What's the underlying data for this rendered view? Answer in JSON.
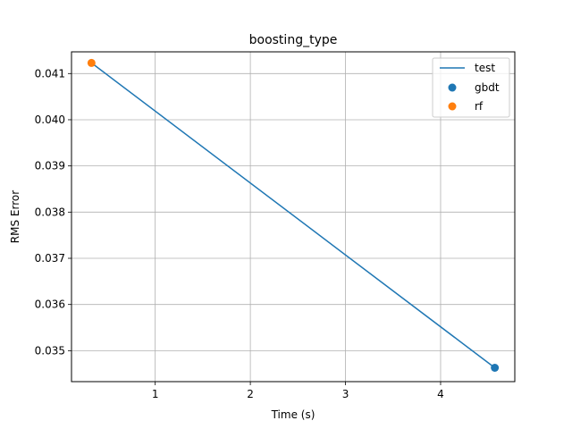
{
  "chart_data": {
    "type": "scatter",
    "title": "boosting_type",
    "xlabel": "Time (s)",
    "ylabel": "RMS Error",
    "xlim": [
      0.12,
      4.78
    ],
    "ylim": [
      0.03433,
      0.04147
    ],
    "xticks": [
      1,
      2,
      3,
      4
    ],
    "yticks": [
      0.035,
      0.036,
      0.037,
      0.038,
      0.039,
      0.04,
      0.041
    ],
    "ytick_labels": [
      "0.035",
      "0.036",
      "0.037",
      "0.038",
      "0.039",
      "0.040",
      "0.041"
    ],
    "grid": true,
    "legend_position": "top-right",
    "line_series": {
      "name": "test",
      "color": "#1f77b4",
      "x": [
        0.33,
        4.57
      ],
      "y": [
        0.04123,
        0.03463
      ]
    },
    "series": [
      {
        "name": "gbdt",
        "color": "#1f77b4",
        "x": [
          4.57
        ],
        "y": [
          0.03463
        ]
      },
      {
        "name": "rf",
        "color": "#ff7f0e",
        "x": [
          0.33
        ],
        "y": [
          0.04123
        ]
      }
    ]
  }
}
